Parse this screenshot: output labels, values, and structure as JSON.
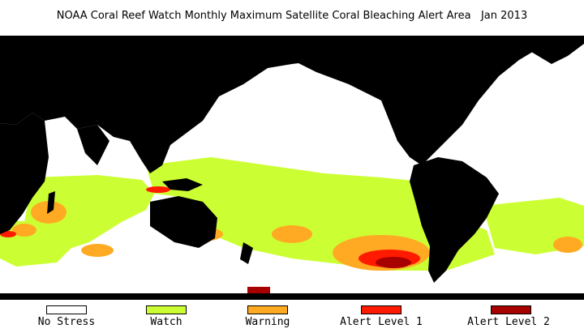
{
  "title": "NOAA Coral Reef Watch Monthly Maximum Satellite Coral Bleaching Alert Area   Jan 2013",
  "colors": {
    "land": "#000000",
    "no_stress": "#ffffff",
    "watch": "#ccff33",
    "warning": "#ffaa22",
    "alert_1": "#ff1a00",
    "alert_2": "#a80000"
  },
  "legend": [
    {
      "label": "No Stress",
      "color": "#ffffff"
    },
    {
      "label": "Watch",
      "color": "#ccff33"
    },
    {
      "label": "Warning",
      "color": "#ffaa22"
    },
    {
      "label": "Alert Level 1",
      "color": "#ff1a00"
    },
    {
      "label": "Alert Level 2",
      "color": "#a80000"
    }
  ]
}
